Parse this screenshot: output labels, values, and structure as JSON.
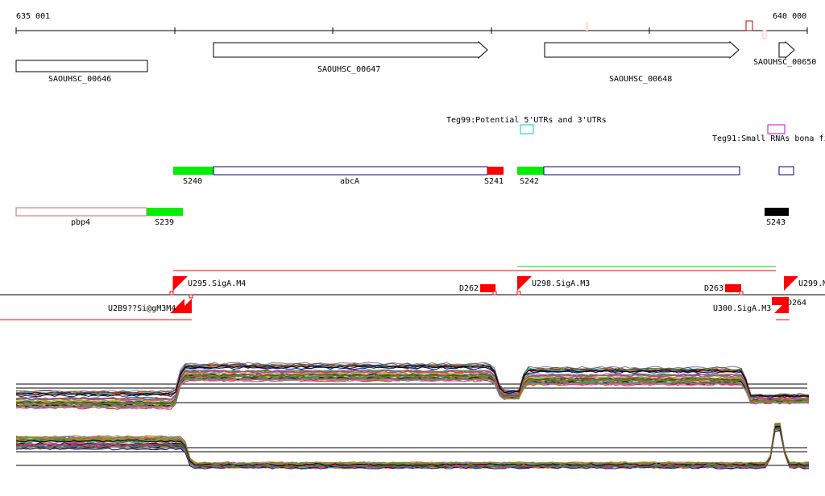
{
  "coordinates": {
    "start": "635 001",
    "end": "640 000"
  },
  "colors": {
    "induced": "#00ee00",
    "repressed": "#ff0000",
    "gene_outline": "#000000",
    "blue_outline": "#00008b",
    "utr_cyan": "#00cccc",
    "srna_magenta": "#cc00cc",
    "black_segment": "#000000"
  },
  "genes": [
    {
      "label": "SAOUHSC_00646",
      "direction": "none"
    },
    {
      "label": "SAOUHSC_00647",
      "direction": "forward"
    },
    {
      "label": "SAOUHSC_00648",
      "direction": "forward"
    },
    {
      "label": "SAOUHSC_00650",
      "direction": "forward"
    }
  ],
  "annotations": {
    "utr_label": "Teg99:Potential 5'UTRs and 3'UTRs",
    "srna_label": "Teg91:Small RNAs bona fi"
  },
  "segments": {
    "s240": "S240",
    "abca": "abcA",
    "s241": "S241",
    "s242": "S242",
    "pbp4": "pbp4",
    "s239": "S239",
    "s243": "S243"
  },
  "promoters": {
    "u295": "U295.SigA.M4",
    "u298": "U298.SigA.M3",
    "u299": "U299.M",
    "u300": "U300.SigA.M3",
    "overlap_label": "U2B9??Si@gM3M4",
    "d262": "D262",
    "d263": "D263",
    "d264": "D264"
  },
  "expression_tracks": [
    {
      "strand": "forward",
      "pattern": "low-high-low-high-low",
      "series_count": 40
    },
    {
      "strand": "reverse",
      "pattern": "high-low-peak",
      "series_count": 40
    }
  ]
}
